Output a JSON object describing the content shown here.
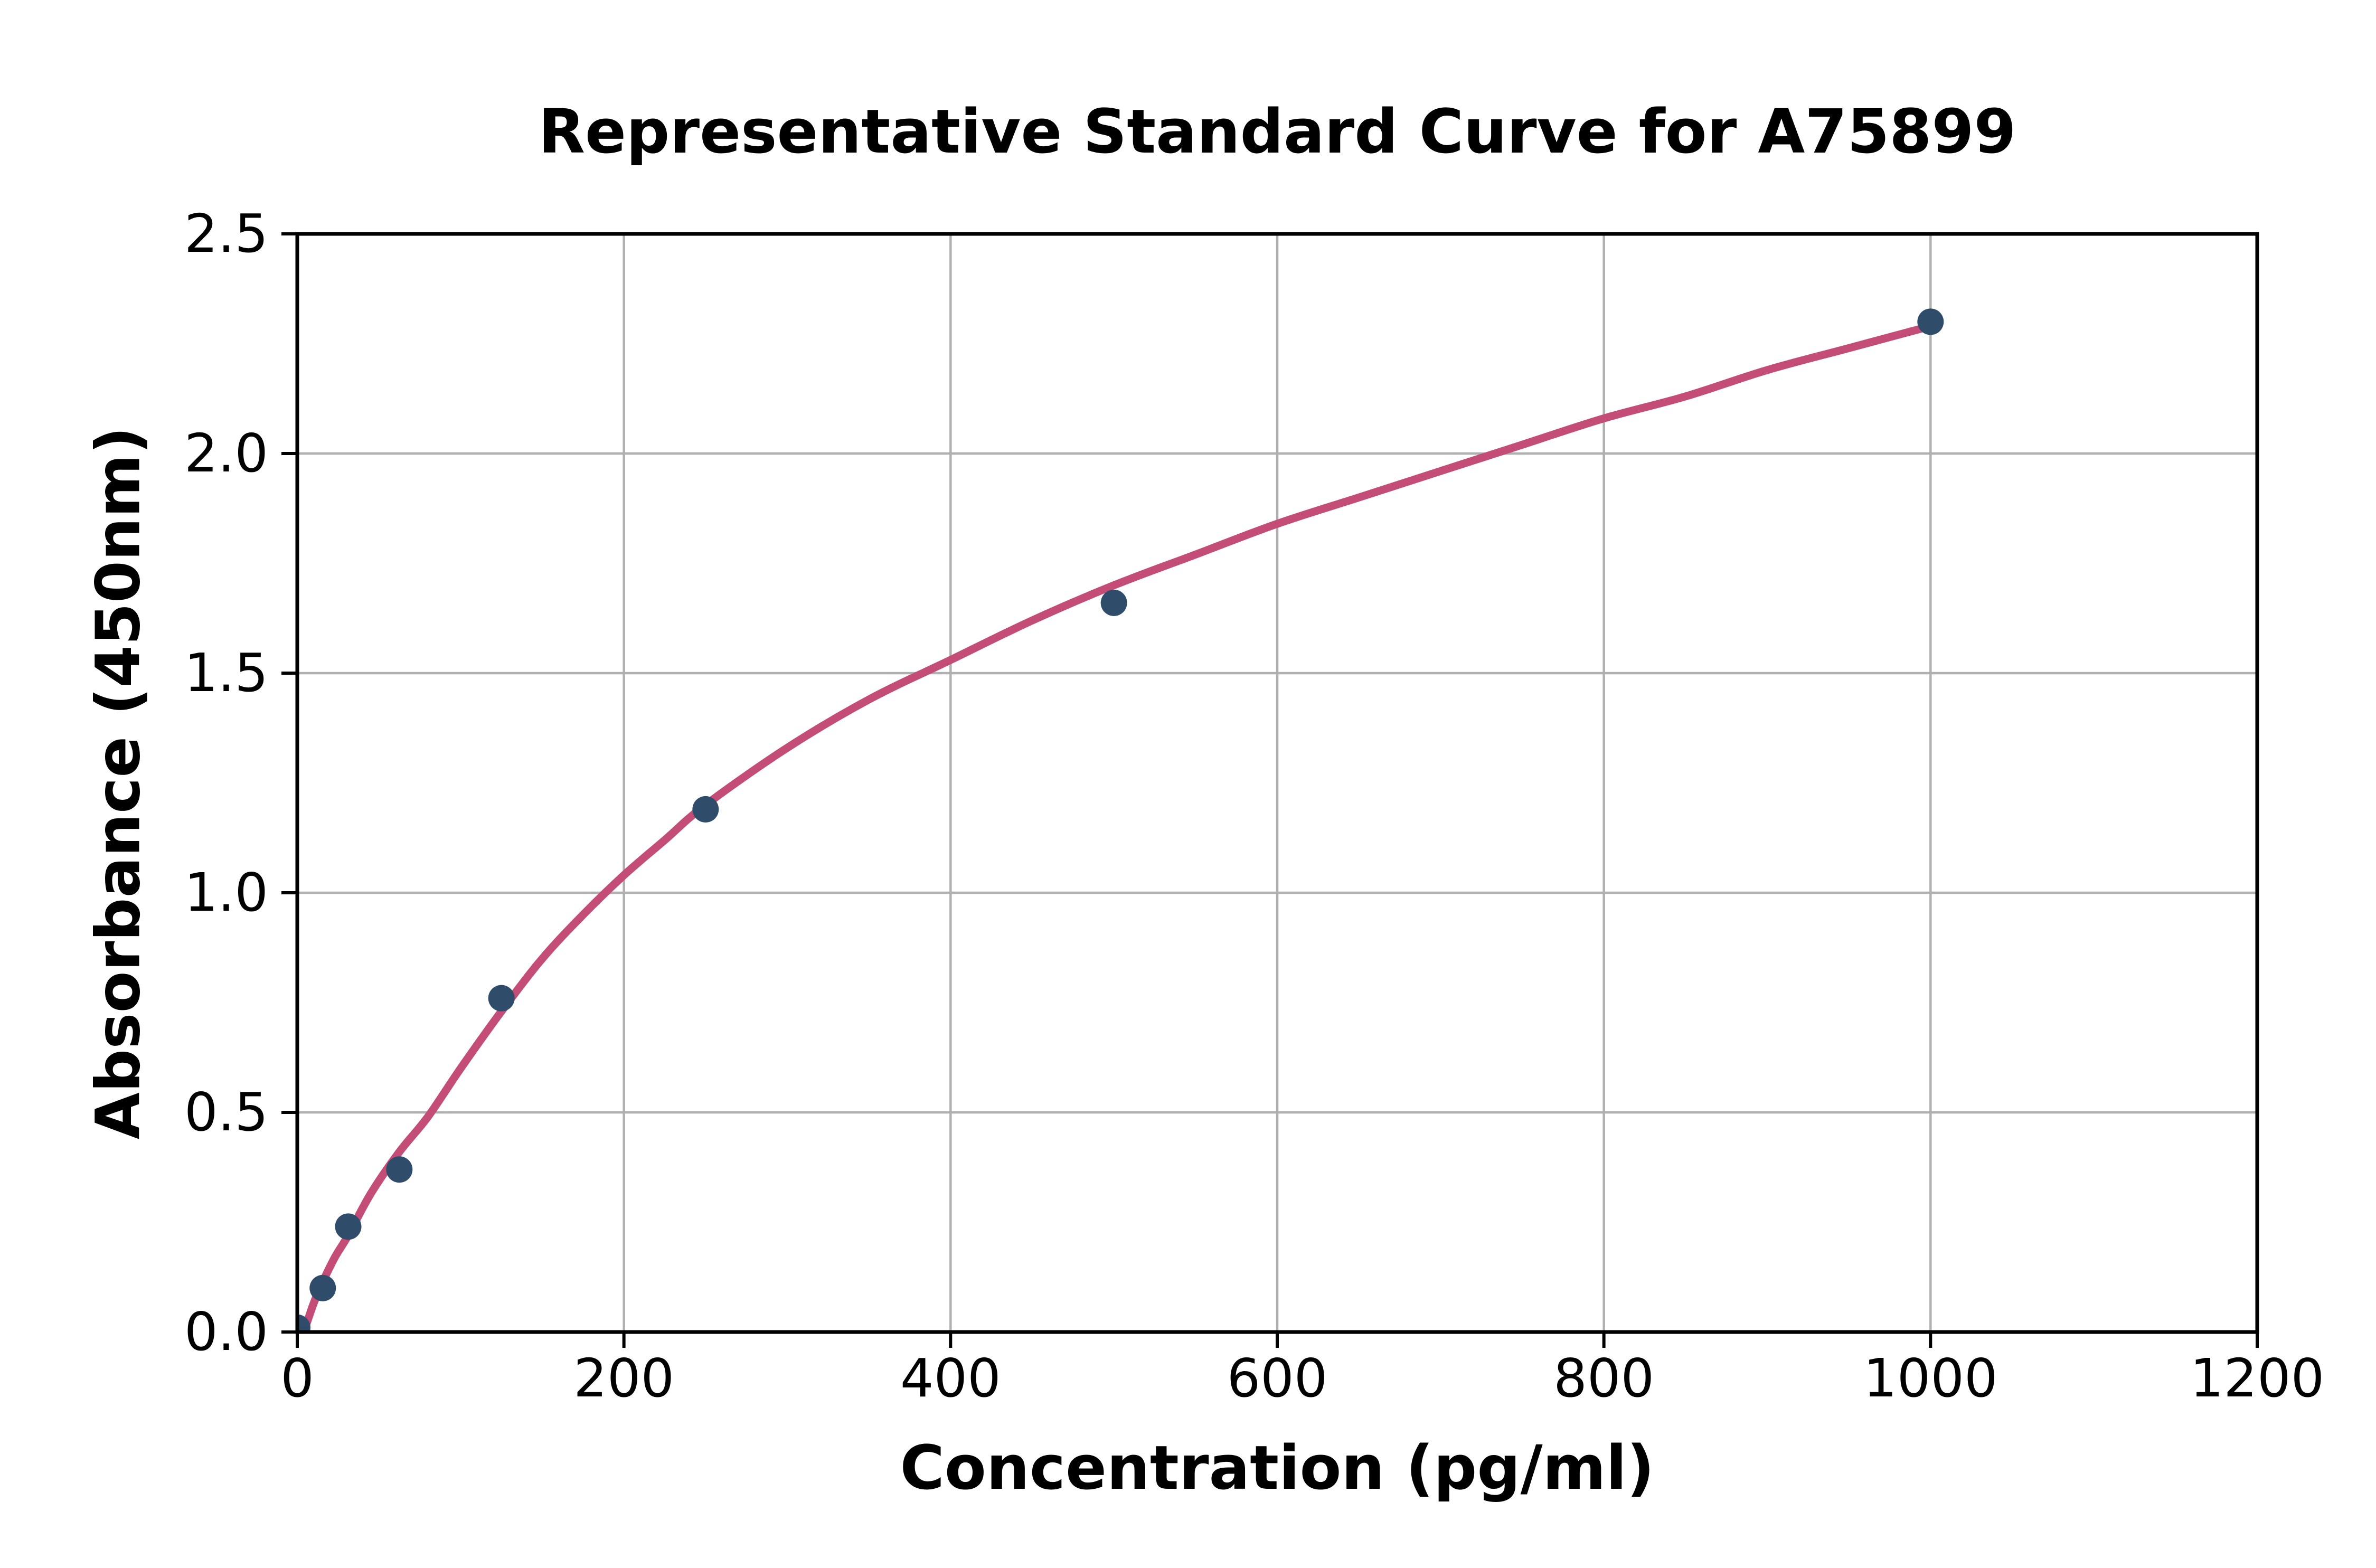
{
  "chart_data": {
    "type": "scatter",
    "title": "Representative Standard Curve for A75899",
    "xlabel": "Concentration (pg/ml)",
    "ylabel": "Absorbance (450nm)",
    "xlim": [
      0,
      1200
    ],
    "ylim": [
      0,
      2.5
    ],
    "x_tick_labels": [
      "0",
      "200",
      "400",
      "600",
      "800",
      "1000",
      "1200"
    ],
    "x_tick_values": [
      0,
      200,
      400,
      600,
      800,
      1000,
      1200
    ],
    "y_tick_labels": [
      "0.0",
      "0.5",
      "1.0",
      "1.5",
      "2.0",
      "2.5"
    ],
    "y_tick_values": [
      0,
      0.5,
      1.0,
      1.5,
      2.0,
      2.5
    ],
    "grid": true,
    "legend_position": "none",
    "series": [
      {
        "name": "standards",
        "points": [
          {
            "x": 0,
            "y": 0.01
          },
          {
            "x": 15.6,
            "y": 0.1
          },
          {
            "x": 31.2,
            "y": 0.24
          },
          {
            "x": 62.5,
            "y": 0.37
          },
          {
            "x": 125,
            "y": 0.76
          },
          {
            "x": 250,
            "y": 1.19
          },
          {
            "x": 500,
            "y": 1.66
          },
          {
            "x": 1000,
            "y": 2.3
          }
        ]
      }
    ],
    "fit_curve_points": [
      [
        4,
        0.0
      ],
      [
        10,
        0.065
      ],
      [
        15.6,
        0.114
      ],
      [
        23,
        0.17
      ],
      [
        31.2,
        0.22
      ],
      [
        45,
        0.315
      ],
      [
        62.5,
        0.41
      ],
      [
        80,
        0.49
      ],
      [
        100,
        0.6
      ],
      [
        125,
        0.73
      ],
      [
        150,
        0.85
      ],
      [
        175,
        0.95
      ],
      [
        200,
        1.04
      ],
      [
        225,
        1.12
      ],
      [
        250,
        1.2
      ],
      [
        300,
        1.33
      ],
      [
        350,
        1.44
      ],
      [
        400,
        1.53
      ],
      [
        450,
        1.62
      ],
      [
        500,
        1.7
      ],
      [
        550,
        1.77
      ],
      [
        600,
        1.84
      ],
      [
        650,
        1.9
      ],
      [
        700,
        1.96
      ],
      [
        750,
        2.02
      ],
      [
        800,
        2.08
      ],
      [
        850,
        2.13
      ],
      [
        900,
        2.19
      ],
      [
        950,
        2.24
      ],
      [
        1000,
        2.29
      ]
    ],
    "colors": {
      "point": "#2F4D6B",
      "curve": "#C44D78",
      "grid": "#B0B0B0",
      "axis": "#000000",
      "text": "#000000",
      "background": "#FFFFFF"
    }
  }
}
